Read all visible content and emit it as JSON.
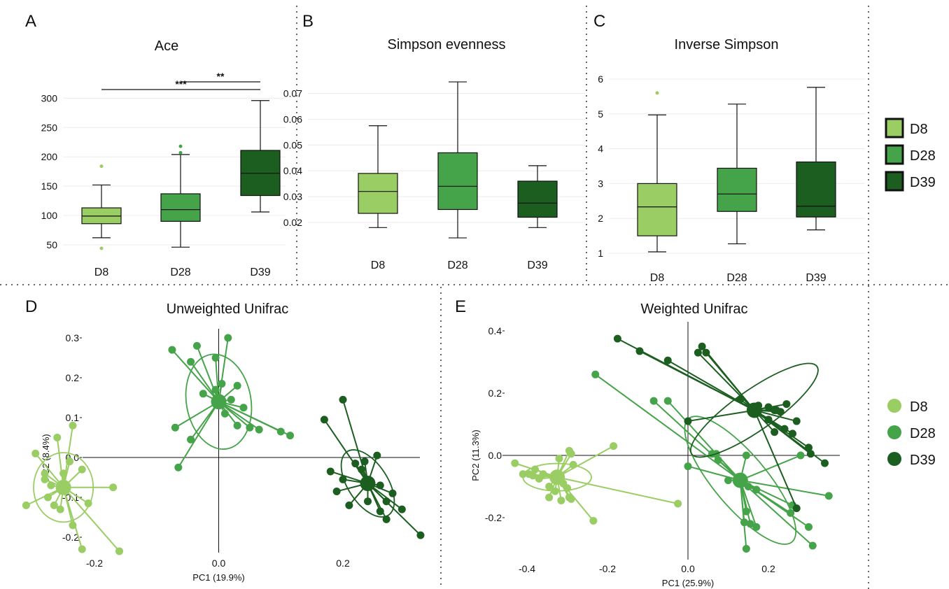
{
  "colors": {
    "D8": "#9acd63",
    "D28": "#45a349",
    "D39": "#1b5e20",
    "grid": "#ececec",
    "divider": "#666666"
  },
  "panel_labels": [
    "A",
    "B",
    "C",
    "D",
    "E"
  ],
  "chart_data": [
    {
      "id": "A",
      "type": "box",
      "title": "Ace",
      "categories": [
        "D8",
        "D28",
        "D39"
      ],
      "yticks": [
        50,
        100,
        150,
        200,
        250,
        300
      ],
      "ylim": [
        38,
        310
      ],
      "boxes": [
        {
          "name": "D8",
          "whislo": 62,
          "q1": 86,
          "med": 99,
          "q3": 113,
          "whishi": 152,
          "fliers": [
            184,
            44
          ]
        },
        {
          "name": "D28",
          "whislo": 46,
          "q1": 90,
          "med": 110,
          "q3": 137,
          "whishi": 204,
          "fliers": [
            218,
            207
          ]
        },
        {
          "name": "D39",
          "whislo": 106,
          "q1": 134,
          "med": 172,
          "q3": 211,
          "whishi": 296,
          "fliers": []
        }
      ],
      "significance": [
        {
          "from": "D28",
          "to": "D39",
          "label": "**"
        },
        {
          "from": "D8",
          "to": "D39",
          "label": "***"
        }
      ]
    },
    {
      "id": "B",
      "type": "box",
      "title": "Simpson evenness",
      "categories": [
        "D8",
        "D28",
        "D39"
      ],
      "yticks": [
        0.02,
        0.03,
        0.04,
        0.05,
        0.06,
        0.07
      ],
      "ytick_labels": [
        "0.02",
        "0.03",
        "0.04",
        "0.05",
        "0.06",
        "0.07"
      ],
      "ylim": [
        0.0113,
        0.0775
      ],
      "boxes": [
        {
          "name": "D8",
          "whislo": 0.018,
          "q1": 0.0235,
          "med": 0.032,
          "q3": 0.039,
          "whishi": 0.0575,
          "fliers": []
        },
        {
          "name": "D28",
          "whislo": 0.014,
          "q1": 0.025,
          "med": 0.034,
          "q3": 0.047,
          "whishi": 0.0745,
          "fliers": []
        },
        {
          "name": "D39",
          "whislo": 0.018,
          "q1": 0.022,
          "med": 0.0275,
          "q3": 0.036,
          "whishi": 0.042,
          "fliers": []
        }
      ]
    },
    {
      "id": "C",
      "type": "box",
      "title": "Inverse Simpson",
      "categories": [
        "D8",
        "D28",
        "D39"
      ],
      "yticks": [
        1,
        2,
        3,
        4,
        5,
        6
      ],
      "ylim": [
        0.88,
        6.3
      ],
      "boxes": [
        {
          "name": "D8",
          "whislo": 1.04,
          "q1": 1.5,
          "med": 2.33,
          "q3": 3.0,
          "whishi": 4.97,
          "fliers": [
            5.6
          ]
        },
        {
          "name": "D28",
          "whislo": 1.27,
          "q1": 2.2,
          "med": 2.7,
          "q3": 3.44,
          "whishi": 5.28,
          "fliers": []
        },
        {
          "name": "D39",
          "whislo": 1.67,
          "q1": 2.04,
          "med": 2.35,
          "q3": 3.62,
          "whishi": 5.76,
          "fliers": []
        }
      ]
    },
    {
      "id": "D",
      "type": "scatter",
      "title": "Unweighted Unifrac",
      "xlabel": "PC1 (19.9%)",
      "ylabel": "PC2 (8.4%)",
      "xticks": [
        -0.2,
        0.0,
        0.2
      ],
      "xtick_labels": [
        "-0.2",
        "0.0",
        "0.2"
      ],
      "yticks": [
        -0.2,
        -0.1,
        0.0,
        0.1,
        0.2,
        0.3
      ],
      "ytick_labels": [
        "-0.2",
        "-0.1",
        "0.0",
        "0.1",
        "0.2",
        "0.3"
      ],
      "xlim": [
        -0.33,
        0.36
      ],
      "ylim": [
        -0.235,
        0.315
      ],
      "series": [
        {
          "name": "D8",
          "centroid": [
            -0.25,
            -0.075
          ],
          "ellipse": {
            "rx": 0.048,
            "ry": 0.087,
            "angle": 0
          },
          "points": [
            [
              -0.31,
              -0.12
            ],
            [
              -0.295,
              0.01
            ],
            [
              -0.28,
              -0.055
            ],
            [
              -0.275,
              -0.1
            ],
            [
              -0.27,
              -0.07
            ],
            [
              -0.28,
              -0.04
            ],
            [
              -0.265,
              -0.12
            ],
            [
              -0.255,
              -0.13
            ],
            [
              -0.235,
              -0.17
            ],
            [
              -0.235,
              0.08
            ],
            [
              -0.24,
              -0.01
            ],
            [
              -0.22,
              -0.03
            ],
            [
              -0.21,
              -0.115
            ],
            [
              -0.17,
              -0.075
            ],
            [
              -0.22,
              -0.23
            ],
            [
              -0.16,
              -0.235
            ],
            [
              -0.26,
              0.05
            ],
            [
              -0.25,
              -0.04
            ]
          ]
        },
        {
          "name": "D28",
          "centroid": [
            0.0,
            0.14
          ],
          "ellipse": {
            "rx": 0.052,
            "ry": 0.12,
            "angle": -10
          },
          "points": [
            [
              -0.075,
              0.27
            ],
            [
              -0.045,
              0.24
            ],
            [
              -0.035,
              0.28
            ],
            [
              -0.005,
              0.25
            ],
            [
              0.015,
              0.3
            ],
            [
              -0.025,
              0.16
            ],
            [
              -0.005,
              0.17
            ],
            [
              0.005,
              0.185
            ],
            [
              0.0,
              0.145
            ],
            [
              0.02,
              0.145
            ],
            [
              0.04,
              0.125
            ],
            [
              0.03,
              0.08
            ],
            [
              0.05,
              0.075
            ],
            [
              0.065,
              0.07
            ],
            [
              0.1,
              0.065
            ],
            [
              0.115,
              0.055
            ],
            [
              -0.07,
              0.075
            ],
            [
              -0.045,
              0.045
            ],
            [
              -0.065,
              -0.025
            ],
            [
              0.03,
              0.18
            ],
            [
              0.01,
              0.11
            ]
          ]
        },
        {
          "name": "D39",
          "centroid": [
            0.24,
            -0.065
          ],
          "ellipse": {
            "rx": 0.032,
            "ry": 0.095,
            "angle": -33
          },
          "points": [
            [
              0.17,
              0.095
            ],
            [
              0.2,
              0.145
            ],
            [
              0.18,
              -0.035
            ],
            [
              0.2,
              -0.055
            ],
            [
              0.22,
              -0.015
            ],
            [
              0.235,
              -0.01
            ],
            [
              0.255,
              0.005
            ],
            [
              0.26,
              -0.07
            ],
            [
              0.28,
              -0.09
            ],
            [
              0.27,
              -0.11
            ],
            [
              0.24,
              -0.11
            ],
            [
              0.26,
              -0.135
            ],
            [
              0.295,
              -0.13
            ],
            [
              0.27,
              -0.155
            ],
            [
              0.325,
              -0.195
            ],
            [
              0.19,
              -0.085
            ],
            [
              0.21,
              -0.12
            ],
            [
              0.23,
              -0.03
            ]
          ]
        }
      ],
      "legend": [
        "D8",
        "D28",
        "D39"
      ]
    },
    {
      "id": "E",
      "type": "scatter",
      "title": "Weighted Unifrac",
      "xlabel": "PC1 (25.9%)",
      "ylabel": "PC2 (11.3%)",
      "xticks": [
        -0.4,
        -0.2,
        0.0,
        0.2
      ],
      "xtick_labels": [
        "-0.4",
        "-0.2",
        "0.0",
        "0.2"
      ],
      "yticks": [
        -0.2,
        0.0,
        0.2,
        0.4
      ],
      "ytick_labels": [
        "-0.2",
        "0.0",
        "0.2",
        "0.4"
      ],
      "xlim": [
        -0.47,
        0.4
      ],
      "ylim": [
        -0.33,
        0.41
      ],
      "series": [
        {
          "name": "D8",
          "centroid": [
            -0.325,
            -0.07
          ],
          "ellipse": {
            "rx": 0.085,
            "ry": 0.044,
            "angle": 0
          },
          "points": [
            [
              -0.43,
              -0.025
            ],
            [
              -0.41,
              -0.06
            ],
            [
              -0.395,
              -0.06
            ],
            [
              -0.385,
              -0.065
            ],
            [
              -0.37,
              -0.075
            ],
            [
              -0.36,
              -0.06
            ],
            [
              -0.345,
              -0.1
            ],
            [
              -0.33,
              -0.115
            ],
            [
              -0.31,
              -0.09
            ],
            [
              -0.3,
              -0.105
            ],
            [
              -0.295,
              -0.135
            ],
            [
              -0.315,
              -0.145
            ],
            [
              -0.345,
              -0.135
            ],
            [
              -0.29,
              -0.14
            ],
            [
              -0.285,
              -0.03
            ],
            [
              -0.295,
              0.015
            ],
            [
              -0.32,
              -0.01
            ],
            [
              -0.29,
              0.005
            ],
            [
              -0.235,
              -0.21
            ],
            [
              -0.185,
              0.03
            ],
            [
              -0.025,
              -0.155
            ],
            [
              -0.38,
              -0.045
            ]
          ]
        },
        {
          "name": "D28",
          "centroid": [
            0.13,
            -0.08
          ],
          "ellipse": {
            "rx": 0.2,
            "ry": 0.085,
            "angle": 50
          },
          "points": [
            [
              -0.23,
              0.26
            ],
            [
              -0.085,
              0.175
            ],
            [
              -0.05,
              0.175
            ],
            [
              0.0,
              -0.035
            ],
            [
              0.06,
              0.005
            ],
            [
              0.07,
              0.005
            ],
            [
              0.075,
              -0.015
            ],
            [
              0.1,
              -0.08
            ],
            [
              0.15,
              -0.1
            ],
            [
              0.17,
              -0.11
            ],
            [
              0.145,
              -0.18
            ],
            [
              0.14,
              -0.215
            ],
            [
              0.155,
              -0.22
            ],
            [
              0.17,
              -0.23
            ],
            [
              0.145,
              -0.3
            ],
            [
              0.26,
              -0.16
            ],
            [
              0.255,
              -0.185
            ],
            [
              0.3,
              -0.23
            ],
            [
              0.31,
              -0.29
            ],
            [
              0.35,
              -0.13
            ],
            [
              0.28,
              0.0
            ],
            [
              0.145,
              0.0
            ]
          ]
        },
        {
          "name": "D39",
          "centroid": [
            0.165,
            0.145
          ],
          "ellipse": {
            "rx": 0.19,
            "ry": 0.065,
            "angle": -35
          },
          "points": [
            [
              -0.175,
              0.375
            ],
            [
              -0.12,
              0.335
            ],
            [
              -0.05,
              0.305
            ],
            [
              0.025,
              0.33
            ],
            [
              0.035,
              0.35
            ],
            [
              0.045,
              0.33
            ],
            [
              0.0,
              0.11
            ],
            [
              0.13,
              0.18
            ],
            [
              0.175,
              0.16
            ],
            [
              0.2,
              0.155
            ],
            [
              0.22,
              0.145
            ],
            [
              0.23,
              0.14
            ],
            [
              0.245,
              0.165
            ],
            [
              0.2,
              0.115
            ],
            [
              0.24,
              0.085
            ],
            [
              0.27,
              0.11
            ],
            [
              0.26,
              0.07
            ],
            [
              0.3,
              0.025
            ],
            [
              0.305,
              0.005
            ],
            [
              0.34,
              -0.025
            ],
            [
              0.27,
              -0.17
            ],
            [
              0.215,
              0.075
            ],
            [
              0.215,
              0.145
            ]
          ]
        }
      ],
      "legend": [
        "D8",
        "D28",
        "D39"
      ]
    }
  ]
}
